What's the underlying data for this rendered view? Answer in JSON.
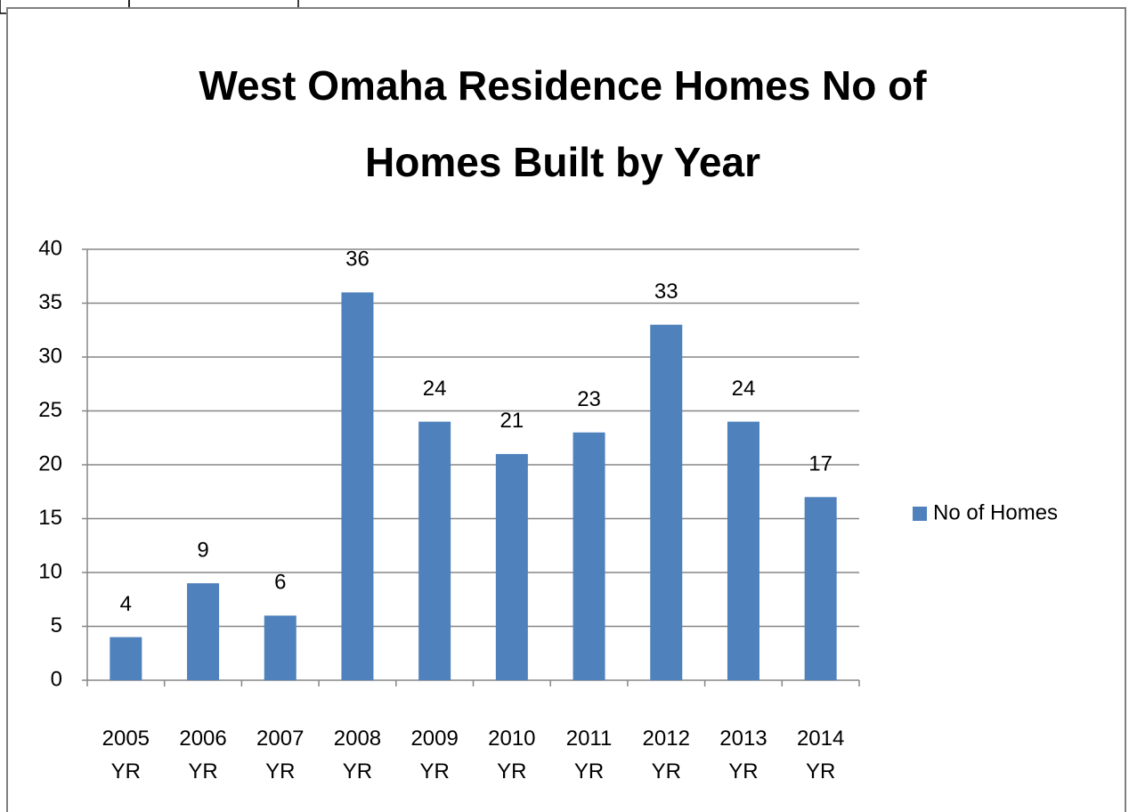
{
  "chart_data": {
    "type": "bar",
    "title": "West Omaha Residence Homes No of Homes Built by Year",
    "categories": [
      "2005 YR",
      "2006 YR",
      "2007 YR",
      "2008 YR",
      "2009 YR",
      "2010 YR",
      "2011 YR",
      "2012 YR",
      "2013 YR",
      "2014 YR"
    ],
    "series": [
      {
        "name": "No of Homes",
        "color": "#4f81bd",
        "values": [
          4,
          9,
          6,
          36,
          24,
          21,
          23,
          33,
          24,
          17
        ]
      }
    ],
    "ylim": [
      0,
      40
    ],
    "yticks": [
      0,
      5,
      10,
      15,
      20,
      25,
      30,
      35,
      40
    ],
    "grid": true,
    "legend": "right"
  }
}
